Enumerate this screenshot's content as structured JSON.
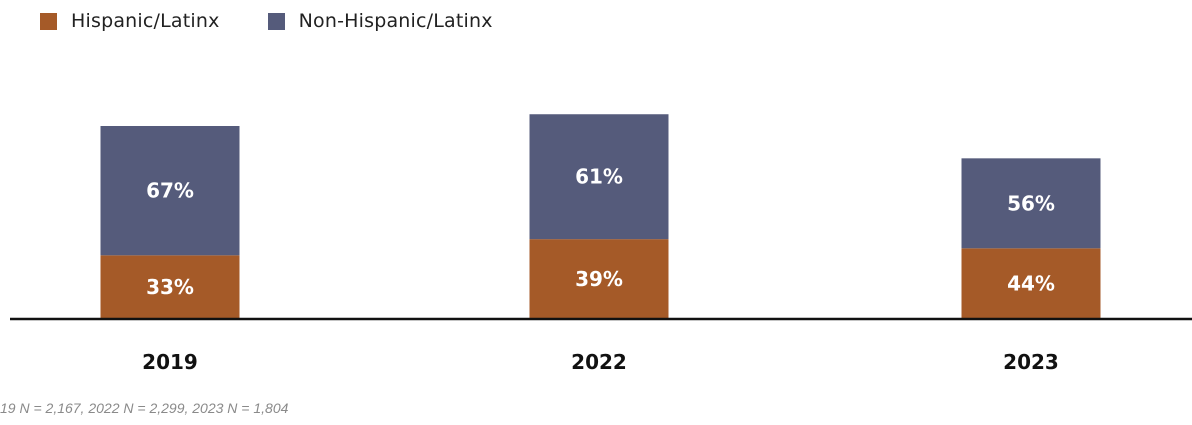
{
  "chart_data": {
    "type": "bar",
    "stacked": true,
    "title": "",
    "xlabel": "",
    "ylabel": "",
    "categories": [
      "2019",
      "2022",
      "2023"
    ],
    "series": [
      {
        "name": "Hispanic/Latinx",
        "color": "#a55a28",
        "values": [
          33,
          39,
          44
        ],
        "labels": [
          "33%",
          "39%",
          "44%"
        ]
      },
      {
        "name": "Non-Hispanic/Latinx",
        "color": "#555b7b",
        "values": [
          67,
          61,
          56
        ],
        "labels": [
          "67%",
          "61%",
          "56%"
        ]
      }
    ],
    "sample_sizes": [
      2167,
      2299,
      1804
    ],
    "legend_position": "top-left",
    "grid": false
  },
  "footnote": "19 N = 2,167, 2022 N = 2,299, 2023 N = 1,804"
}
